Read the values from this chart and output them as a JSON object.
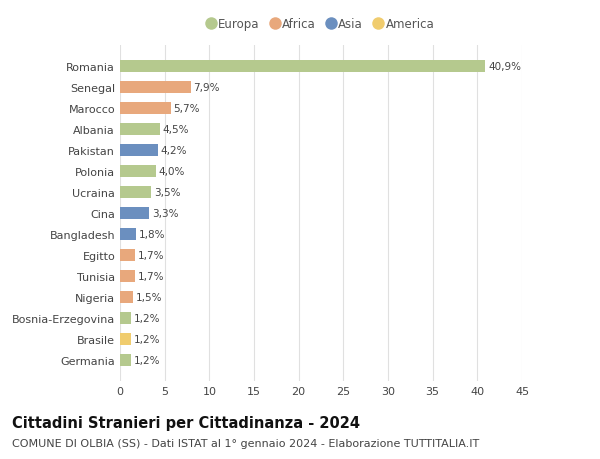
{
  "countries": [
    "Romania",
    "Senegal",
    "Marocco",
    "Albania",
    "Pakistan",
    "Polonia",
    "Ucraina",
    "Cina",
    "Bangladesh",
    "Egitto",
    "Tunisia",
    "Nigeria",
    "Bosnia-Erzegovina",
    "Brasile",
    "Germania"
  ],
  "values": [
    40.9,
    7.9,
    5.7,
    4.5,
    4.2,
    4.0,
    3.5,
    3.3,
    1.8,
    1.7,
    1.7,
    1.5,
    1.2,
    1.2,
    1.2
  ],
  "labels": [
    "40,9%",
    "7,9%",
    "5,7%",
    "4,5%",
    "4,2%",
    "4,0%",
    "3,5%",
    "3,3%",
    "1,8%",
    "1,7%",
    "1,7%",
    "1,5%",
    "1,2%",
    "1,2%",
    "1,2%"
  ],
  "continents": [
    "Europa",
    "Africa",
    "Africa",
    "Europa",
    "Asia",
    "Europa",
    "Europa",
    "Asia",
    "Asia",
    "Africa",
    "Africa",
    "Africa",
    "Europa",
    "America",
    "Europa"
  ],
  "continent_colors": {
    "Europa": "#b5c98e",
    "Africa": "#e8a87c",
    "Asia": "#6b8fbf",
    "America": "#f0cc6e"
  },
  "legend_order": [
    "Europa",
    "Africa",
    "Asia",
    "America"
  ],
  "title": "Cittadini Stranieri per Cittadinanza - 2024",
  "subtitle": "COMUNE DI OLBIA (SS) - Dati ISTAT al 1° gennaio 2024 - Elaborazione TUTTITALIA.IT",
  "xlim": [
    0,
    45
  ],
  "xticks": [
    0,
    5,
    10,
    15,
    20,
    25,
    30,
    35,
    40,
    45
  ],
  "background_color": "#ffffff",
  "grid_color": "#e0e0e0",
  "bar_height": 0.55,
  "title_fontsize": 10.5,
  "subtitle_fontsize": 8,
  "tick_fontsize": 8,
  "label_fontsize": 7.5,
  "legend_fontsize": 8.5
}
